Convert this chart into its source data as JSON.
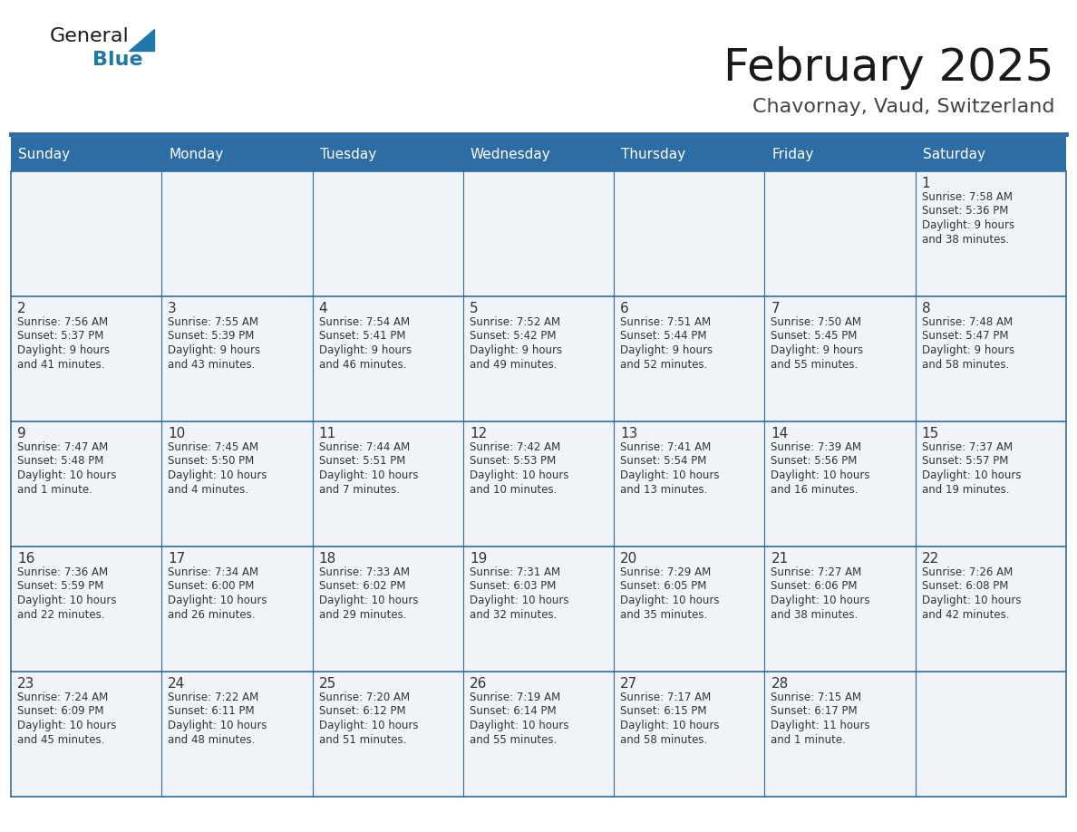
{
  "title": "February 2025",
  "subtitle": "Chavornay, Vaud, Switzerland",
  "header_bg": "#2E6DA4",
  "header_text": "#FFFFFF",
  "cell_bg": "#F0F4F8",
  "border_color": "#2E6DA4",
  "text_color": "#333333",
  "days_of_week": [
    "Sunday",
    "Monday",
    "Tuesday",
    "Wednesday",
    "Thursday",
    "Friday",
    "Saturday"
  ],
  "calendar": [
    [
      null,
      null,
      null,
      null,
      null,
      null,
      1
    ],
    [
      2,
      3,
      4,
      5,
      6,
      7,
      8
    ],
    [
      9,
      10,
      11,
      12,
      13,
      14,
      15
    ],
    [
      16,
      17,
      18,
      19,
      20,
      21,
      22
    ],
    [
      23,
      24,
      25,
      26,
      27,
      28,
      null
    ]
  ],
  "day_data": {
    "1": {
      "sunrise": "7:58 AM",
      "sunset": "5:36 PM",
      "daylight_l1": "Daylight: 9 hours",
      "daylight_l2": "and 38 minutes."
    },
    "2": {
      "sunrise": "7:56 AM",
      "sunset": "5:37 PM",
      "daylight_l1": "Daylight: 9 hours",
      "daylight_l2": "and 41 minutes."
    },
    "3": {
      "sunrise": "7:55 AM",
      "sunset": "5:39 PM",
      "daylight_l1": "Daylight: 9 hours",
      "daylight_l2": "and 43 minutes."
    },
    "4": {
      "sunrise": "7:54 AM",
      "sunset": "5:41 PM",
      "daylight_l1": "Daylight: 9 hours",
      "daylight_l2": "and 46 minutes."
    },
    "5": {
      "sunrise": "7:52 AM",
      "sunset": "5:42 PM",
      "daylight_l1": "Daylight: 9 hours",
      "daylight_l2": "and 49 minutes."
    },
    "6": {
      "sunrise": "7:51 AM",
      "sunset": "5:44 PM",
      "daylight_l1": "Daylight: 9 hours",
      "daylight_l2": "and 52 minutes."
    },
    "7": {
      "sunrise": "7:50 AM",
      "sunset": "5:45 PM",
      "daylight_l1": "Daylight: 9 hours",
      "daylight_l2": "and 55 minutes."
    },
    "8": {
      "sunrise": "7:48 AM",
      "sunset": "5:47 PM",
      "daylight_l1": "Daylight: 9 hours",
      "daylight_l2": "and 58 minutes."
    },
    "9": {
      "sunrise": "7:47 AM",
      "sunset": "5:48 PM",
      "daylight_l1": "Daylight: 10 hours",
      "daylight_l2": "and 1 minute."
    },
    "10": {
      "sunrise": "7:45 AM",
      "sunset": "5:50 PM",
      "daylight_l1": "Daylight: 10 hours",
      "daylight_l2": "and 4 minutes."
    },
    "11": {
      "sunrise": "7:44 AM",
      "sunset": "5:51 PM",
      "daylight_l1": "Daylight: 10 hours",
      "daylight_l2": "and 7 minutes."
    },
    "12": {
      "sunrise": "7:42 AM",
      "sunset": "5:53 PM",
      "daylight_l1": "Daylight: 10 hours",
      "daylight_l2": "and 10 minutes."
    },
    "13": {
      "sunrise": "7:41 AM",
      "sunset": "5:54 PM",
      "daylight_l1": "Daylight: 10 hours",
      "daylight_l2": "and 13 minutes."
    },
    "14": {
      "sunrise": "7:39 AM",
      "sunset": "5:56 PM",
      "daylight_l1": "Daylight: 10 hours",
      "daylight_l2": "and 16 minutes."
    },
    "15": {
      "sunrise": "7:37 AM",
      "sunset": "5:57 PM",
      "daylight_l1": "Daylight: 10 hours",
      "daylight_l2": "and 19 minutes."
    },
    "16": {
      "sunrise": "7:36 AM",
      "sunset": "5:59 PM",
      "daylight_l1": "Daylight: 10 hours",
      "daylight_l2": "and 22 minutes."
    },
    "17": {
      "sunrise": "7:34 AM",
      "sunset": "6:00 PM",
      "daylight_l1": "Daylight: 10 hours",
      "daylight_l2": "and 26 minutes."
    },
    "18": {
      "sunrise": "7:33 AM",
      "sunset": "6:02 PM",
      "daylight_l1": "Daylight: 10 hours",
      "daylight_l2": "and 29 minutes."
    },
    "19": {
      "sunrise": "7:31 AM",
      "sunset": "6:03 PM",
      "daylight_l1": "Daylight: 10 hours",
      "daylight_l2": "and 32 minutes."
    },
    "20": {
      "sunrise": "7:29 AM",
      "sunset": "6:05 PM",
      "daylight_l1": "Daylight: 10 hours",
      "daylight_l2": "and 35 minutes."
    },
    "21": {
      "sunrise": "7:27 AM",
      "sunset": "6:06 PM",
      "daylight_l1": "Daylight: 10 hours",
      "daylight_l2": "and 38 minutes."
    },
    "22": {
      "sunrise": "7:26 AM",
      "sunset": "6:08 PM",
      "daylight_l1": "Daylight: 10 hours",
      "daylight_l2": "and 42 minutes."
    },
    "23": {
      "sunrise": "7:24 AM",
      "sunset": "6:09 PM",
      "daylight_l1": "Daylight: 10 hours",
      "daylight_l2": "and 45 minutes."
    },
    "24": {
      "sunrise": "7:22 AM",
      "sunset": "6:11 PM",
      "daylight_l1": "Daylight: 10 hours",
      "daylight_l2": "and 48 minutes."
    },
    "25": {
      "sunrise": "7:20 AM",
      "sunset": "6:12 PM",
      "daylight_l1": "Daylight: 10 hours",
      "daylight_l2": "and 51 minutes."
    },
    "26": {
      "sunrise": "7:19 AM",
      "sunset": "6:14 PM",
      "daylight_l1": "Daylight: 10 hours",
      "daylight_l2": "and 55 minutes."
    },
    "27": {
      "sunrise": "7:17 AM",
      "sunset": "6:15 PM",
      "daylight_l1": "Daylight: 10 hours",
      "daylight_l2": "and 58 minutes."
    },
    "28": {
      "sunrise": "7:15 AM",
      "sunset": "6:17 PM",
      "daylight_l1": "Daylight: 11 hours",
      "daylight_l2": "and 1 minute."
    }
  },
  "logo_general_color": "#1a1a1a",
  "logo_blue_color": "#2176AE",
  "logo_triangle_color": "#2176AE",
  "title_color": "#1a1a1a",
  "subtitle_color": "#444444"
}
